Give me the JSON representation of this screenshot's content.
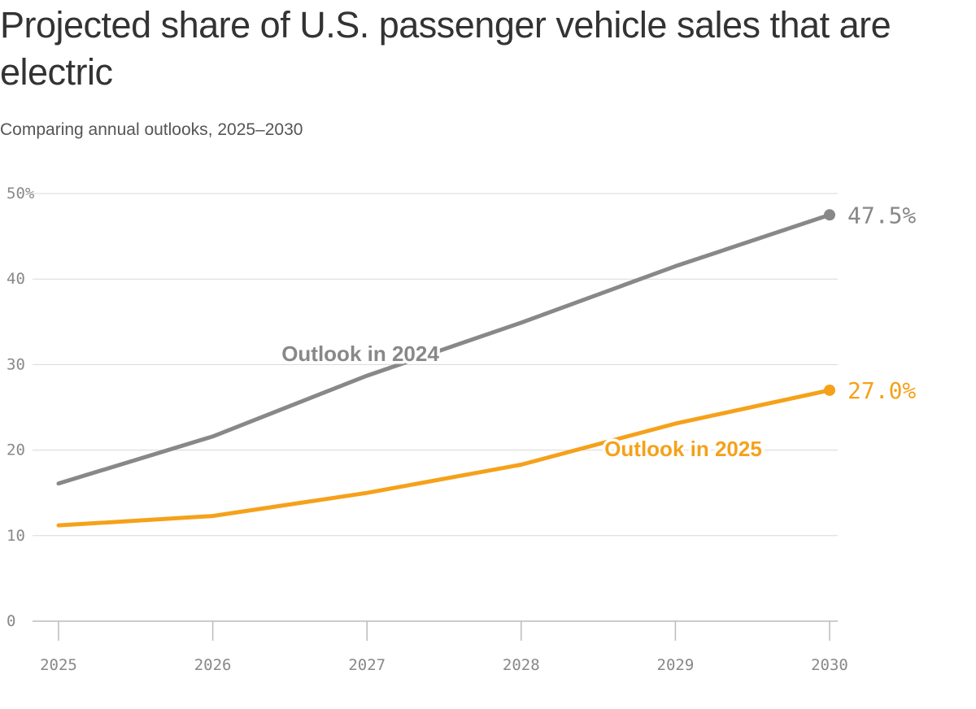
{
  "chart_data": {
    "type": "line",
    "title": "Projected share of U.S. passenger vehicle sales that are electric",
    "subtitle": "Comparing annual outlooks, 2025–2030",
    "x": [
      2025,
      2026,
      2027,
      2028,
      2029,
      2030
    ],
    "x_tick_labels": [
      "2025",
      "2026",
      "2027",
      "2028",
      "2029",
      "2030"
    ],
    "ylim": [
      0,
      50
    ],
    "y_ticks": [
      0,
      10,
      20,
      30,
      40,
      50
    ],
    "y_tick_labels": [
      "0",
      "10",
      "20",
      "30",
      "40",
      "50%"
    ],
    "grid": true,
    "series": [
      {
        "name": "Outlook in 2024",
        "color": "#888888",
        "values": [
          16.1,
          21.6,
          28.7,
          34.9,
          41.5,
          47.5
        ],
        "end_label": "47.5%"
      },
      {
        "name": "Outlook in 2025",
        "color": "#f5a11a",
        "values": [
          11.2,
          12.3,
          15.0,
          18.3,
          23.1,
          27.0
        ],
        "end_label": "27.0%"
      }
    ]
  }
}
